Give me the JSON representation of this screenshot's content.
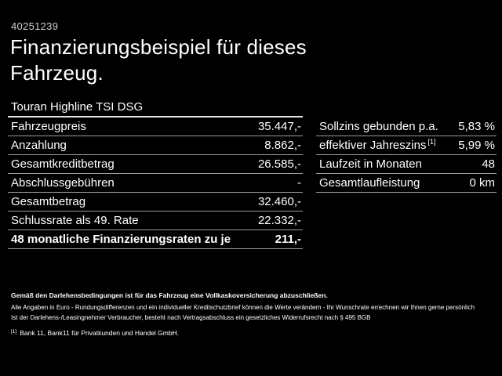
{
  "header": {
    "vehicle_id": "40251239",
    "title": "Finanzierungsbeispiel für dieses Fahrzeug.",
    "subtitle": "Touran Highline TSI DSG"
  },
  "finance_table": {
    "rows": [
      {
        "label": "Fahrzeugpreis",
        "value": "35.447,-"
      },
      {
        "label": "Anzahlung",
        "value": "8.862,-"
      },
      {
        "label": "Gesamtkreditbetrag",
        "value": "26.585,-"
      },
      {
        "label": "Abschlussgebühren",
        "value": "-"
      },
      {
        "label": "Gesamtbetrag",
        "value": "32.460,-"
      },
      {
        "label": "Schlussrate als 49. Rate",
        "value": "22.332,-"
      },
      {
        "label": "48 monatliche Finanzierungsraten zu je",
        "value": "211,-"
      }
    ]
  },
  "conditions_table": {
    "rows": [
      {
        "label": "Sollzins gebunden p.a.",
        "value": "5,83 %"
      },
      {
        "label": "effektiver Jahreszins",
        "footnote_ref": "[1]",
        "value": "5,99 %"
      },
      {
        "label": "Laufzeit in Monaten",
        "value": "48"
      },
      {
        "label": "Gesamtlaufleistung",
        "value": "0 km"
      }
    ]
  },
  "footer": {
    "insurance_note": "Gemäß den Darlehensbedingungen ist für das Fahrzeug eine Vollkaskoversicherung abzuschließen.",
    "disclaimer_line1": "Alle Angaben in Euro - Rundungsdifferenzen und ein individueller Kreditschutzbrief können die Werte verändern - Ihr Wunschrate errechnen wir Ihnen gerne persönlich",
    "disclaimer_line2": "Ist der Darlehens-/Leasingnehmer Verbraucher, besteht nach Vertragsabschluss ein gesetzliches Widerrufsrecht nach § 495 BGB",
    "footnote_marker": "[1]",
    "footnote_text": "Bank 11, Bank11 für Privatkunden und Handel GmbH."
  },
  "colors": {
    "background": "#000000",
    "text": "#ffffff",
    "separator": "#9d9d9d",
    "subtitle_underline": "#e3e3e3"
  }
}
